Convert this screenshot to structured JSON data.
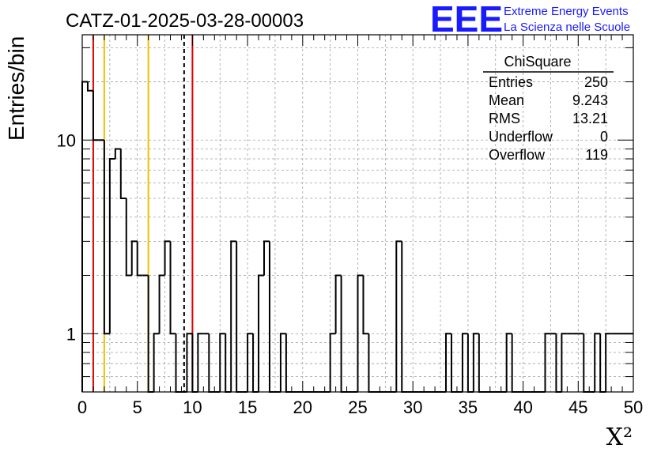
{
  "chart_data": {
    "type": "histogram",
    "title": "CATZ-01-2025-03-28-00003",
    "xlabel": "X²",
    "ylabel": "Entries/bin",
    "xlim": [
      0,
      50
    ],
    "ylim_log": [
      0.5,
      35
    ],
    "y_scale": "log",
    "grid": true,
    "bin_width": 0.5,
    "x_ticks": [
      0,
      5,
      10,
      15,
      20,
      25,
      30,
      35,
      40,
      45,
      50
    ],
    "x_tick_labels": [
      "0",
      "5",
      "10",
      "15",
      "20",
      "25",
      "30",
      "35",
      "40",
      "45",
      "50"
    ],
    "y_ticks": [
      1,
      10
    ],
    "y_tick_labels": [
      "1",
      "10"
    ],
    "bins": [
      {
        "x": 0.0,
        "y": 20
      },
      {
        "x": 0.5,
        "y": 18
      },
      {
        "x": 1.0,
        "y": 10
      },
      {
        "x": 1.5,
        "y": 10
      },
      {
        "x": 2.0,
        "y": 1
      },
      {
        "x": 2.5,
        "y": 8
      },
      {
        "x": 3.0,
        "y": 9
      },
      {
        "x": 3.5,
        "y": 5
      },
      {
        "x": 4.0,
        "y": 2
      },
      {
        "x": 4.5,
        "y": 3
      },
      {
        "x": 5.0,
        "y": 2
      },
      {
        "x": 5.5,
        "y": 2
      },
      {
        "x": 6.0,
        "y": 0
      },
      {
        "x": 6.5,
        "y": 1
      },
      {
        "x": 7.0,
        "y": 2
      },
      {
        "x": 7.5,
        "y": 3
      },
      {
        "x": 8.0,
        "y": 1
      },
      {
        "x": 8.5,
        "y": 0
      },
      {
        "x": 9.0,
        "y": 0
      },
      {
        "x": 9.5,
        "y": 1
      },
      {
        "x": 10.0,
        "y": 0
      },
      {
        "x": 10.5,
        "y": 1
      },
      {
        "x": 11.0,
        "y": 1
      },
      {
        "x": 11.5,
        "y": 0
      },
      {
        "x": 12.0,
        "y": 0
      },
      {
        "x": 12.5,
        "y": 1
      },
      {
        "x": 13.0,
        "y": 0
      },
      {
        "x": 13.5,
        "y": 3
      },
      {
        "x": 14.0,
        "y": 0
      },
      {
        "x": 14.5,
        "y": 0
      },
      {
        "x": 15.0,
        "y": 1
      },
      {
        "x": 15.5,
        "y": 0
      },
      {
        "x": 16.0,
        "y": 2
      },
      {
        "x": 16.5,
        "y": 3
      },
      {
        "x": 17.0,
        "y": 0
      },
      {
        "x": 17.5,
        "y": 0
      },
      {
        "x": 18.0,
        "y": 1
      },
      {
        "x": 18.5,
        "y": 0
      },
      {
        "x": 22.5,
        "y": 1
      },
      {
        "x": 23.0,
        "y": 2
      },
      {
        "x": 25.0,
        "y": 2
      },
      {
        "x": 25.5,
        "y": 1
      },
      {
        "x": 28.5,
        "y": 3
      },
      {
        "x": 33.0,
        "y": 1
      },
      {
        "x": 34.5,
        "y": 1
      },
      {
        "x": 35.5,
        "y": 1
      },
      {
        "x": 38.5,
        "y": 1
      },
      {
        "x": 42.0,
        "y": 1
      },
      {
        "x": 42.5,
        "y": 1
      },
      {
        "x": 43.5,
        "y": 1
      },
      {
        "x": 44.0,
        "y": 1
      },
      {
        "x": 44.5,
        "y": 1
      },
      {
        "x": 45.0,
        "y": 1
      },
      {
        "x": 46.5,
        "y": 1
      },
      {
        "x": 47.5,
        "y": 1
      },
      {
        "x": 48.0,
        "y": 1
      },
      {
        "x": 48.5,
        "y": 1
      },
      {
        "x": 49.0,
        "y": 1
      },
      {
        "x": 49.5,
        "y": 1
      }
    ],
    "vertical_lines": [
      {
        "x": 1.0,
        "color": "#e00000",
        "style": "solid"
      },
      {
        "x": 2.0,
        "color": "#f0c000",
        "style": "solid"
      },
      {
        "x": 6.0,
        "color": "#f0c000",
        "style": "solid"
      },
      {
        "x": 9.243,
        "color": "#000000",
        "style": "dashed"
      },
      {
        "x": 10.0,
        "color": "#e00000",
        "style": "solid"
      }
    ],
    "stats_box": {
      "title": "ChiSquare",
      "rows": [
        {
          "label": "Entries",
          "value": "250"
        },
        {
          "label": "Mean",
          "value": "9.243"
        },
        {
          "label": "RMS",
          "value": "13.21"
        },
        {
          "label": "Underflow",
          "value": "0"
        },
        {
          "label": "Overflow",
          "value": "119"
        }
      ]
    }
  },
  "logo": {
    "text": "EEE",
    "line1": "Extreme Energy Events",
    "line2": "La Scienza nelle Scuole",
    "color": "#1a1aff"
  },
  "colors": {
    "histogram": "#000000",
    "grid": "#a0a0a0"
  }
}
